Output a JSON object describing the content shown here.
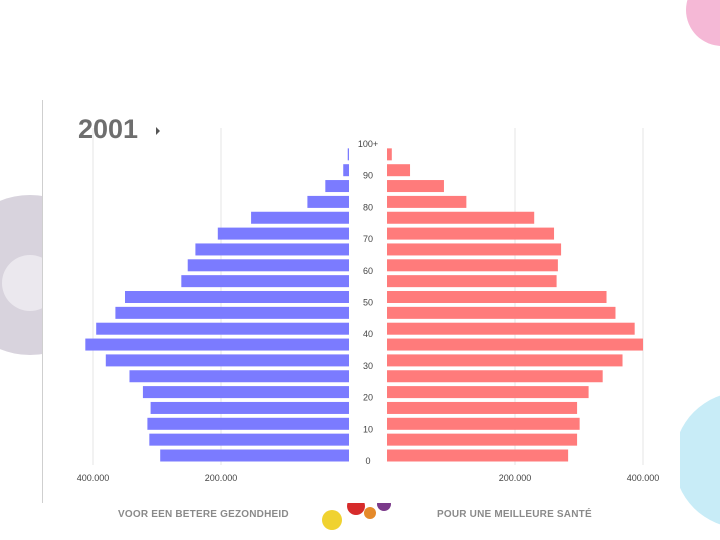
{
  "chart_data": {
    "type": "bar",
    "orientation": "horizontal-population-pyramid",
    "title": "2001",
    "age_groups": [
      "0",
      "5",
      "10",
      "15",
      "20",
      "25",
      "30",
      "35",
      "40",
      "45",
      "50",
      "55",
      "60",
      "65",
      "70",
      "75",
      "80",
      "85",
      "90",
      "95",
      "100+"
    ],
    "age_tick_labels": [
      "0",
      "10",
      "20",
      "30",
      "40",
      "50",
      "60",
      "70",
      "80",
      "90",
      "100+"
    ],
    "x_tick_labels_left": [
      "400.000",
      "200.000"
    ],
    "x_tick_labels_right": [
      "200.000",
      "400.000"
    ],
    "xlim": [
      0,
      400000
    ],
    "series": [
      {
        "side": "left",
        "color": "#7b7bff",
        "values": [
          295000,
          312000,
          315000,
          310000,
          322000,
          343000,
          380000,
          412000,
          395000,
          365000,
          350000,
          262000,
          252000,
          240000,
          205000,
          153000,
          65000,
          37000,
          9000,
          2000,
          0
        ]
      },
      {
        "side": "right",
        "color": "#ff7b7b",
        "values": [
          283000,
          297000,
          301000,
          297000,
          315000,
          337000,
          368000,
          400000,
          387000,
          357000,
          343000,
          265000,
          267000,
          272000,
          261000,
          230000,
          124000,
          89000,
          36000,
          7500,
          0
        ]
      }
    ],
    "grid": true
  },
  "footer": {
    "left_text": "VOOR EEN BETERE GEZONDHEID",
    "right_text": "POUR UNE MEILLEURE SANTÉ"
  }
}
